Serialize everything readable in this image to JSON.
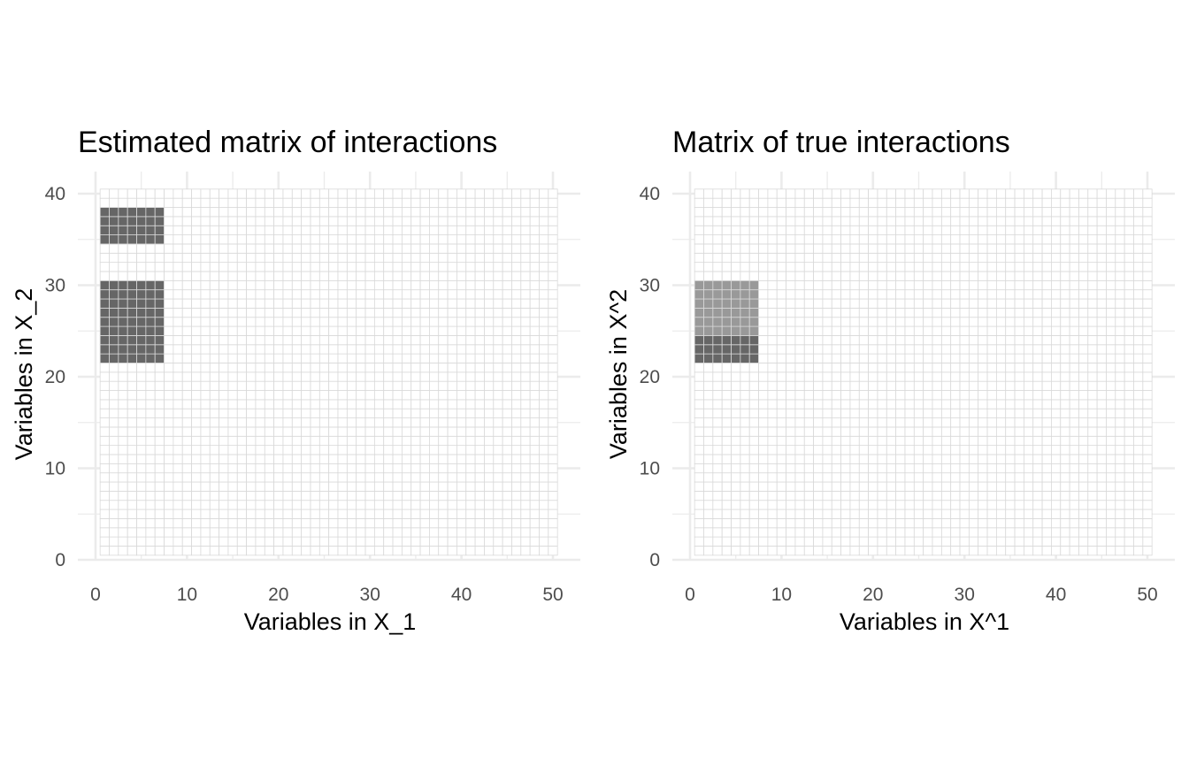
{
  "chart_data": [
    {
      "type": "heatmap",
      "title": "Estimated matrix of interactions",
      "xlabel": "Variables in X_1",
      "ylabel": "Variables in X_2",
      "xlim": [
        0,
        50
      ],
      "ylim": [
        0,
        40
      ],
      "x_ticks": [
        0,
        10,
        20,
        30,
        40,
        50
      ],
      "y_ticks": [
        0,
        10,
        20,
        30,
        40
      ],
      "grid_cols": 50,
      "grid_rows": 40,
      "cell_border_color": "#d9d9d9",
      "empty_cell_color": "#ffffff",
      "legend": "none",
      "filled_blocks": [
        {
          "x_from": 1,
          "x_to": 7,
          "y_from": 35,
          "y_to": 38,
          "color": "#666666"
        },
        {
          "x_from": 1,
          "x_to": 7,
          "y_from": 22,
          "y_to": 30,
          "color": "#666666"
        }
      ]
    },
    {
      "type": "heatmap",
      "title": "Matrix of true interactions",
      "xlabel": "Variables in X^1",
      "ylabel": "Variables in X^2",
      "xlim": [
        0,
        50
      ],
      "ylim": [
        0,
        40
      ],
      "x_ticks": [
        0,
        10,
        20,
        30,
        40,
        50
      ],
      "y_ticks": [
        0,
        10,
        20,
        30,
        40
      ],
      "grid_cols": 50,
      "grid_rows": 40,
      "cell_border_color": "#d9d9d9",
      "empty_cell_color": "#ffffff",
      "legend": "none",
      "filled_blocks": [
        {
          "x_from": 1,
          "x_to": 7,
          "y_from": 25,
          "y_to": 30,
          "color": "#999999"
        },
        {
          "x_from": 1,
          "x_to": 7,
          "y_from": 22,
          "y_to": 24,
          "color": "#666666"
        }
      ]
    }
  ]
}
